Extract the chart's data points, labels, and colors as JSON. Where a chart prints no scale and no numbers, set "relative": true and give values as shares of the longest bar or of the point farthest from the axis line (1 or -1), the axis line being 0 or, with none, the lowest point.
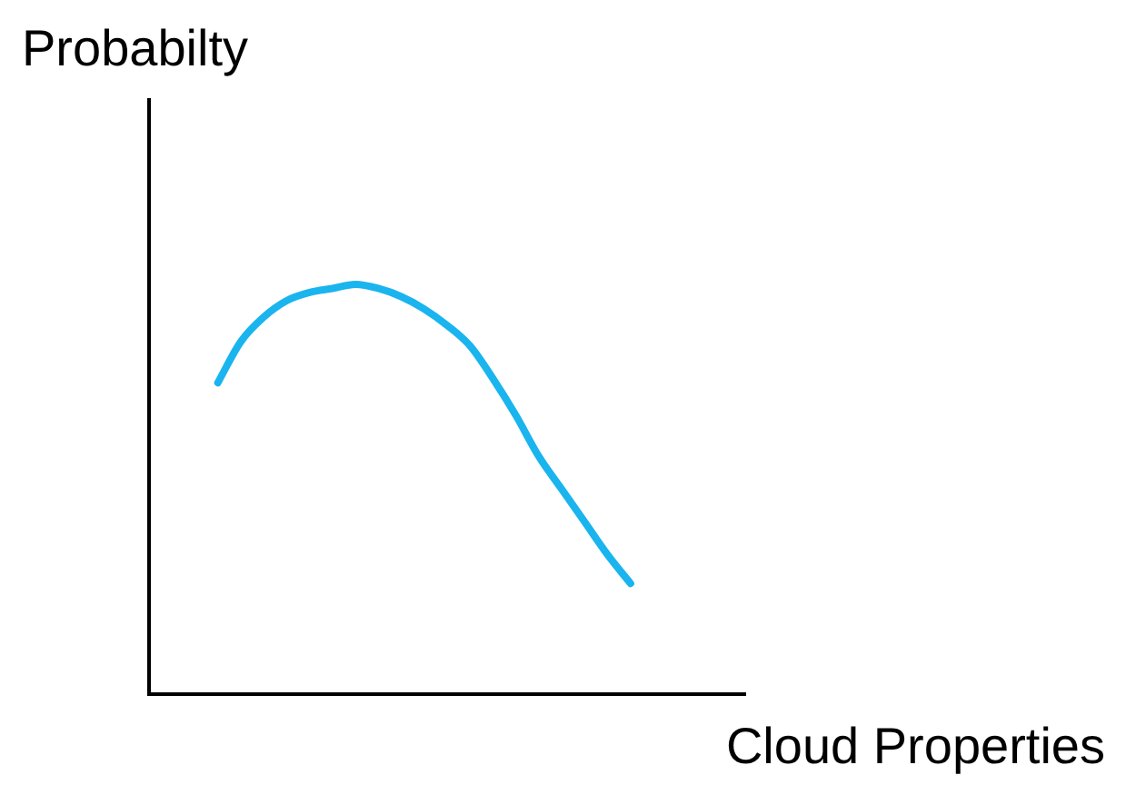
{
  "chart_data": {
    "type": "line",
    "relative": true,
    "xlabel": "Cloud Properties",
    "ylabel": "Probabilty",
    "grid": false,
    "legend": false,
    "marker": "none",
    "line_style": "solid",
    "categories": [
      null,
      null,
      null,
      null,
      null,
      null,
      null,
      null,
      null,
      null,
      null,
      null,
      null,
      null,
      null,
      null,
      null,
      null,
      null,
      null,
      null,
      null,
      null,
      null,
      null,
      null,
      null
    ],
    "series": [
      {
        "color": "#1ab4ee",
        "values": [
          null,
          null,
          null,
          0.76,
          0.86,
          0.92,
          0.96,
          0.98,
          0.99,
          1,
          0.99,
          0.97,
          0.94,
          0.9,
          0.85,
          0.77,
          0.68,
          0.58,
          0.5,
          0.42,
          0.34,
          0.27,
          null,
          null,
          null,
          null,
          null
        ]
      }
    ]
  }
}
